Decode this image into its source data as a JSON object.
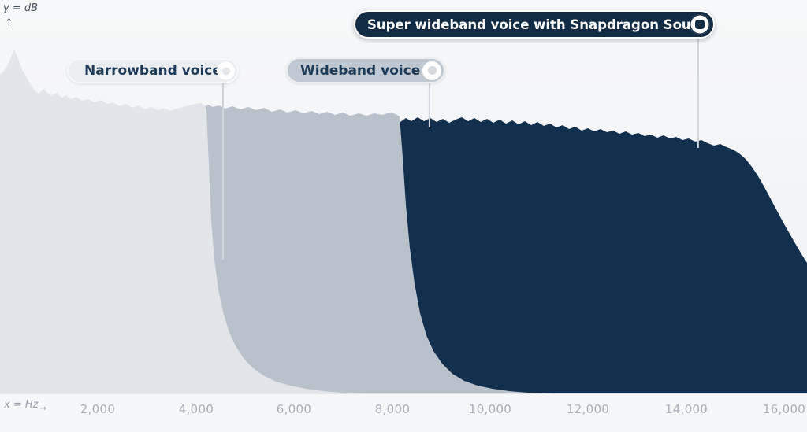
{
  "axis": {
    "y_label": "y = dB",
    "y_arrow": "↑",
    "x_label": "x = Hz",
    "x_arrow": "→"
  },
  "legend": {
    "narrowband_label": "Narrowband voice",
    "wideband_label": "Wideband voice",
    "swb_label": "Super wideband voice with Snapdragon Sound"
  },
  "colors": {
    "background_top": "#f7f8f9",
    "background_bottom": "#eef0f3",
    "narrowband_fill": "#e2e6ea",
    "wideband_fill": "#b9c1ca",
    "swb_fill": "#132f4e",
    "pill_narrowband_bg": "#ebeef1",
    "pill_wideband_bg": "#c0c8d1",
    "pill_swb_bg": "#122c45",
    "label_text_dark": "#1d3a56",
    "label_text_light": "#ffffff",
    "tick_text": "#a8afb8",
    "callout_line": "#cfd5da"
  },
  "chart_data": {
    "type": "area",
    "title": "",
    "xlabel": "x = Hz",
    "ylabel": "y = dB",
    "grid": false,
    "legend_position": "top",
    "x_range_hz": [
      0,
      16466
    ],
    "level_units": "percent of plot height (relative dB level, y-axis unscaled)",
    "x_ticks": [
      {
        "hz": 2000,
        "label": "2,000"
      },
      {
        "hz": 4000,
        "label": "4,000"
      },
      {
        "hz": 6000,
        "label": "6,000"
      },
      {
        "hz": 8000,
        "label": "8,000"
      },
      {
        "hz": 10000,
        "label": "10,000"
      },
      {
        "hz": 12000,
        "label": "12,000"
      },
      {
        "hz": 14000,
        "label": "14,000"
      },
      {
        "hz": 16000,
        "label": "16,000"
      }
    ],
    "series": [
      {
        "id": "swb",
        "name": "Super wideband voice with Snapdragon Sound",
        "color": "#132f4e",
        "z": 1,
        "points": [
          [
            7992,
            66
          ],
          [
            8072,
            68
          ],
          [
            8169,
            69
          ],
          [
            8281,
            70
          ],
          [
            8394,
            69.2
          ],
          [
            8522,
            70.2
          ],
          [
            8651,
            69.2
          ],
          [
            8780,
            70
          ],
          [
            8908,
            69
          ],
          [
            9037,
            69.8
          ],
          [
            9166,
            68.8
          ],
          [
            9294,
            69.6
          ],
          [
            9423,
            70.2
          ],
          [
            9551,
            69.2
          ],
          [
            9680,
            70
          ],
          [
            9809,
            69
          ],
          [
            9937,
            69.8
          ],
          [
            10066,
            68.8
          ],
          [
            10195,
            69.6
          ],
          [
            10323,
            68.6
          ],
          [
            10452,
            69.4
          ],
          [
            10581,
            68.4
          ],
          [
            10709,
            69.2
          ],
          [
            10838,
            68.2
          ],
          [
            10967,
            69
          ],
          [
            11095,
            68
          ],
          [
            11224,
            68.6
          ],
          [
            11352,
            67.6
          ],
          [
            11481,
            68.2
          ],
          [
            11610,
            67.2
          ],
          [
            11738,
            67.8
          ],
          [
            11867,
            66.8
          ],
          [
            11996,
            67.4
          ],
          [
            12124,
            66.6
          ],
          [
            12253,
            67.2
          ],
          [
            12382,
            66.4
          ],
          [
            12510,
            66.8
          ],
          [
            12639,
            66
          ],
          [
            12768,
            66.6
          ],
          [
            12896,
            65.8
          ],
          [
            13025,
            66.2
          ],
          [
            13153,
            65.4
          ],
          [
            13282,
            65.8
          ],
          [
            13411,
            65
          ],
          [
            13539,
            65.6
          ],
          [
            13668,
            64.8
          ],
          [
            13797,
            65.2
          ],
          [
            13925,
            64.4
          ],
          [
            14054,
            64.8
          ],
          [
            14183,
            64
          ],
          [
            14311,
            64.4
          ],
          [
            14440,
            63.6
          ],
          [
            14568,
            63
          ],
          [
            14697,
            63.4
          ],
          [
            14826,
            62.6
          ],
          [
            14954,
            62
          ],
          [
            15083,
            61
          ],
          [
            15212,
            59.6
          ],
          [
            15340,
            57.6
          ],
          [
            15469,
            55.2
          ],
          [
            15598,
            52.4
          ],
          [
            15726,
            49.4
          ],
          [
            15855,
            46.4
          ],
          [
            15984,
            43.4
          ],
          [
            16112,
            40.6
          ],
          [
            16241,
            37.8
          ],
          [
            16353,
            35.4
          ],
          [
            16466,
            33.2
          ]
        ]
      },
      {
        "id": "wideband",
        "name": "Wideband voice",
        "color": "#b9c1ca",
        "z": 2,
        "points": [
          [
            0,
            72
          ],
          [
            322,
            72.6
          ],
          [
            643,
            71.8
          ],
          [
            965,
            72.4
          ],
          [
            1286,
            71.6
          ],
          [
            1608,
            72.2
          ],
          [
            1930,
            71.4
          ],
          [
            2251,
            72
          ],
          [
            2573,
            71.2
          ],
          [
            2894,
            71.8
          ],
          [
            3216,
            71
          ],
          [
            3538,
            71.6
          ],
          [
            3859,
            72.2
          ],
          [
            4069,
            73.2
          ],
          [
            4149,
            72.6
          ],
          [
            4245,
            73.4
          ],
          [
            4342,
            72.8
          ],
          [
            4470,
            73.2
          ],
          [
            4599,
            72.4
          ],
          [
            4744,
            73
          ],
          [
            4905,
            72.2
          ],
          [
            5065,
            72.8
          ],
          [
            5226,
            72
          ],
          [
            5387,
            72.6
          ],
          [
            5548,
            71.6
          ],
          [
            5709,
            72.2
          ],
          [
            5869,
            71.4
          ],
          [
            6030,
            72
          ],
          [
            6191,
            71.2
          ],
          [
            6352,
            71.8
          ],
          [
            6513,
            71
          ],
          [
            6673,
            71.6
          ],
          [
            6834,
            70.8
          ],
          [
            6995,
            71.4
          ],
          [
            7156,
            70.6
          ],
          [
            7316,
            71.2
          ],
          [
            7477,
            70.6
          ],
          [
            7638,
            71.2
          ],
          [
            7799,
            70.8
          ],
          [
            7959,
            71.4
          ],
          [
            8072,
            71
          ],
          [
            8153,
            70.4
          ],
          [
            8217,
            60
          ],
          [
            8281,
            48
          ],
          [
            8362,
            37
          ],
          [
            8458,
            28
          ],
          [
            8571,
            20.4
          ],
          [
            8699,
            14.8
          ],
          [
            8844,
            10.8
          ],
          [
            9021,
            7.6
          ],
          [
            9230,
            5
          ],
          [
            9471,
            3.2
          ],
          [
            9744,
            2
          ],
          [
            10050,
            1.2
          ],
          [
            10388,
            0.6
          ],
          [
            10774,
            0.2
          ],
          [
            11256,
            0
          ]
        ]
      },
      {
        "id": "narrowband",
        "name": "Narrowband voice",
        "color": "#e2e6ea",
        "z": 3,
        "points": [
          [
            0,
            81
          ],
          [
            80,
            82
          ],
          [
            161,
            83.6
          ],
          [
            225,
            85.6
          ],
          [
            290,
            87.4
          ],
          [
            354,
            85.6
          ],
          [
            402,
            84
          ],
          [
            450,
            82.4
          ],
          [
            515,
            81
          ],
          [
            579,
            79.4
          ],
          [
            643,
            78
          ],
          [
            724,
            76.8
          ],
          [
            804,
            76.2
          ],
          [
            884,
            77.4
          ],
          [
            965,
            76.4
          ],
          [
            1061,
            75.8
          ],
          [
            1158,
            76.4
          ],
          [
            1254,
            75.2
          ],
          [
            1351,
            75.8
          ],
          [
            1447,
            74.8
          ],
          [
            1560,
            75.4
          ],
          [
            1672,
            74.4
          ],
          [
            1801,
            74.8
          ],
          [
            1930,
            74
          ],
          [
            2058,
            74.6
          ],
          [
            2187,
            73.6
          ],
          [
            2315,
            74
          ],
          [
            2444,
            73
          ],
          [
            2573,
            73.6
          ],
          [
            2701,
            72.6
          ],
          [
            2830,
            73.2
          ],
          [
            2959,
            72.2
          ],
          [
            3087,
            72.8
          ],
          [
            3216,
            72
          ],
          [
            3345,
            72.6
          ],
          [
            3473,
            71.8
          ],
          [
            3602,
            72.4
          ],
          [
            3730,
            72.8
          ],
          [
            3859,
            73.2
          ],
          [
            3988,
            73.6
          ],
          [
            4100,
            73.8
          ],
          [
            4181,
            73.2
          ],
          [
            4213,
            72
          ],
          [
            4261,
            58
          ],
          [
            4309,
            44
          ],
          [
            4374,
            34
          ],
          [
            4454,
            26.4
          ],
          [
            4551,
            20.8
          ],
          [
            4663,
            16
          ],
          [
            4792,
            12.4
          ],
          [
            4953,
            9.2
          ],
          [
            5146,
            6.6
          ],
          [
            5371,
            4.6
          ],
          [
            5628,
            3
          ],
          [
            5918,
            2
          ],
          [
            6239,
            1.2
          ],
          [
            6593,
            0.6
          ],
          [
            6995,
            0.2
          ],
          [
            7397,
            0
          ]
        ]
      }
    ],
    "callouts": [
      {
        "series": "narrowband",
        "x_hz": 4550
      },
      {
        "series": "wideband",
        "x_hz": 8762
      },
      {
        "series": "swb",
        "x_hz": 14245
      }
    ]
  }
}
